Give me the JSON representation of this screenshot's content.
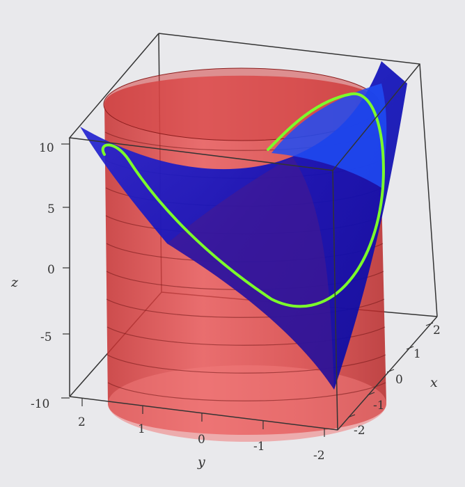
{
  "chart_data": {
    "type": "surface3d",
    "title": "",
    "xlabel": "x",
    "ylabel": "y",
    "zlabel": "z",
    "xlim": [
      -2,
      2
    ],
    "ylim": [
      -2,
      2
    ],
    "zlim": [
      -10,
      10
    ],
    "x_ticks": [
      "2",
      "1",
      "0",
      "-1",
      "-2"
    ],
    "y_ticks": [
      "2",
      "1",
      "0",
      "-1",
      "-2"
    ],
    "z_ticks": [
      "10",
      "5",
      "0",
      "-5",
      "-10"
    ],
    "series": [
      {
        "kind": "cylinder",
        "equation_radius": 2,
        "color": "#e23a3a"
      },
      {
        "kind": "saddle-surface",
        "color": "#1a1ad8"
      },
      {
        "kind": "intersection-curve",
        "color": "#7cff2a"
      }
    ],
    "grid": false,
    "box": true
  }
}
